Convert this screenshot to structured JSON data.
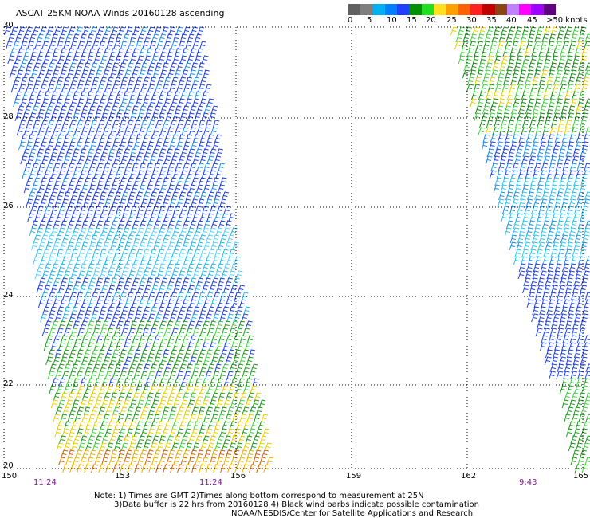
{
  "title": "ASCAT 25KM NOAA Winds 20160128 ascending",
  "scale": {
    "colors": [
      "#606060",
      "#7f7f7f",
      "#00b0f0",
      "#0080ff",
      "#2040ff",
      "#009000",
      "#20e020",
      "#ffe020",
      "#ffa000",
      "#ff6000",
      "#ff2020",
      "#c00000",
      "#8b4513",
      "#c080ff",
      "#ff00ff",
      "#a000ff",
      "#600080"
    ],
    "labels": [
      "0",
      "5",
      "10",
      "15",
      "20",
      "25",
      "30",
      "35",
      "40",
      "45",
      ">50 knots"
    ]
  },
  "lat_labels": [
    "30",
    "28",
    "26",
    "24",
    "22",
    "20"
  ],
  "lon_labels": [
    "150",
    "153",
    "156",
    "159",
    "162",
    "165"
  ],
  "times": [
    "11:24",
    "11:24",
    "9:43"
  ],
  "notes": {
    "line1": "Note: 1) Times are GMT 2)Times along bottom correspond to measurement at 25N",
    "line2": "3)Data buffer is 22 hrs from 20160128 4) Black wind barbs indicate possible contamination",
    "line3": "NOAA/NESDIS/Center for Satellite Applications and Research"
  }
}
